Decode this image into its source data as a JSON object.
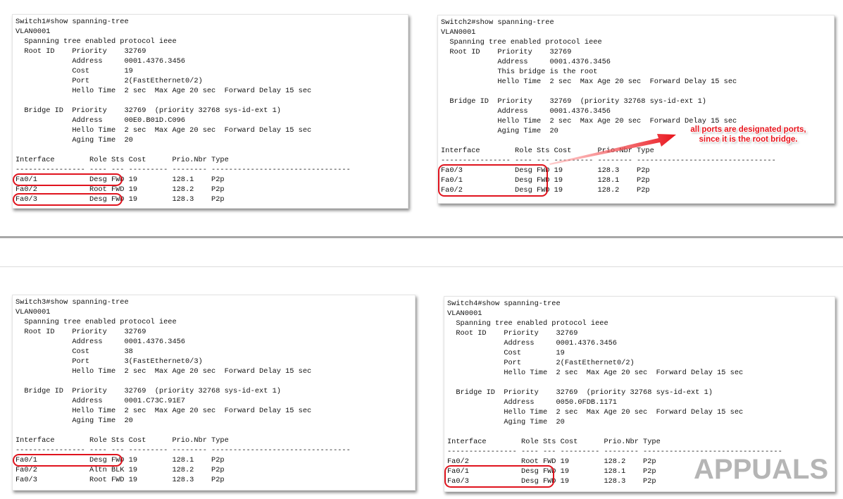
{
  "panels": [
    {
      "name": "switch1",
      "lines": [
        "Switch1#show spanning-tree",
        "VLAN0001",
        "  Spanning tree enabled protocol ieee",
        "  Root ID    Priority    32769",
        "             Address     0001.4376.3456",
        "             Cost        19",
        "             Port        2(FastEthernet0/2)",
        "             Hello Time  2 sec  Max Age 20 sec  Forward Delay 15 sec",
        "",
        "  Bridge ID  Priority    32769  (priority 32768 sys-id-ext 1)",
        "             Address     00E0.B01D.C096",
        "             Hello Time  2 sec  Max Age 20 sec  Forward Delay 15 sec",
        "             Aging Time  20",
        "",
        "Interface        Role Sts Cost      Prio.Nbr Type",
        "---------------- ---- --- --------- -------- --------------------------------",
        "Fa0/1            Desg FWD 19        128.1    P2p",
        "Fa0/2            Root FWD 19        128.2    P2p",
        "Fa0/3            Desg FWD 19        128.3    P2p"
      ],
      "highlights": [
        [
          16,
          16
        ],
        [
          18,
          18
        ]
      ]
    },
    {
      "name": "switch2",
      "lines": [
        "Switch2#show spanning-tree",
        "VLAN0001",
        "  Spanning tree enabled protocol ieee",
        "  Root ID    Priority    32769",
        "             Address     0001.4376.3456",
        "             This bridge is the root",
        "             Hello Time  2 sec  Max Age 20 sec  Forward Delay 15 sec",
        "",
        "  Bridge ID  Priority    32769  (priority 32768 sys-id-ext 1)",
        "             Address     0001.4376.3456",
        "             Hello Time  2 sec  Max Age 20 sec  Forward Delay 15 sec",
        "             Aging Time  20",
        "",
        "Interface        Role Sts Cost      Prio.Nbr Type",
        "---------------- ---- --- --------- -------- --------------------------------",
        "Fa0/3            Desg FWD 19        128.3    P2p",
        "Fa0/1            Desg FWD 19        128.1    P2p",
        "Fa0/2            Desg FWD 19        128.2    P2p"
      ],
      "highlights": [
        [
          15,
          17
        ]
      ]
    },
    {
      "name": "switch3",
      "lines": [
        "Switch3#show spanning-tree",
        "VLAN0001",
        "  Spanning tree enabled protocol ieee",
        "  Root ID    Priority    32769",
        "             Address     0001.4376.3456",
        "             Cost        38",
        "             Port        3(FastEthernet0/3)",
        "             Hello Time  2 sec  Max Age 20 sec  Forward Delay 15 sec",
        "",
        "  Bridge ID  Priority    32769  (priority 32768 sys-id-ext 1)",
        "             Address     0001.C73C.91E7",
        "             Hello Time  2 sec  Max Age 20 sec  Forward Delay 15 sec",
        "             Aging Time  20",
        "",
        "Interface        Role Sts Cost      Prio.Nbr Type",
        "---------------- ---- --- --------- -------- --------------------------------",
        "Fa0/1            Desg FWD 19        128.1    P2p",
        "Fa0/2            Altn BLK 19        128.2    P2p",
        "Fa0/3            Root FWD 19        128.3    P2p"
      ],
      "highlights": [
        [
          16,
          16
        ]
      ]
    },
    {
      "name": "switch4",
      "lines": [
        "Switch4#show spanning-tree",
        "VLAN0001",
        "  Spanning tree enabled protocol ieee",
        "  Root ID    Priority    32769",
        "             Address     0001.4376.3456",
        "             Cost        19",
        "             Port        2(FastEthernet0/2)",
        "             Hello Time  2 sec  Max Age 20 sec  Forward Delay 15 sec",
        "",
        "  Bridge ID  Priority    32769  (priority 32768 sys-id-ext 1)",
        "             Address     0050.0FDB.1171",
        "             Hello Time  2 sec  Max Age 20 sec  Forward Delay 15 sec",
        "             Aging Time  20",
        "",
        "Interface        Role Sts Cost      Prio.Nbr Type",
        "---------------- ---- --- --------- -------- --------------------------------",
        "Fa0/2            Root FWD 19        128.2    P2p",
        "Fa0/1            Desg FWD 19        128.1    P2p",
        "Fa0/3            Desg FWD 19        128.3    P2p"
      ],
      "highlights": [
        [
          17,
          18
        ]
      ]
    }
  ],
  "annotation": {
    "line1": "all ports are designated ports,",
    "line2": "since it is the root bridge.",
    "color": "#e8141c"
  },
  "watermark": "APPUALS",
  "highlight_color": "#e0141e"
}
